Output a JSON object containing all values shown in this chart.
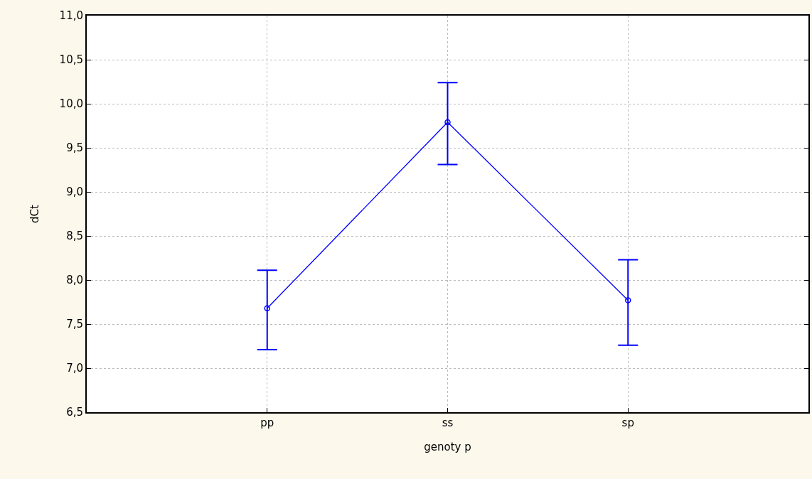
{
  "chart_data": {
    "type": "line",
    "xlabel": "genoty p",
    "ylabel": "dCt",
    "categories": [
      "pp",
      "ss",
      "sp"
    ],
    "series": [
      {
        "color": "#0000ff",
        "values": [
          7.68,
          9.79,
          7.77
        ],
        "errors": [
          [
            7.21,
            8.11
          ],
          [
            9.31,
            10.24
          ],
          [
            7.26,
            8.23
          ]
        ]
      }
    ],
    "ylim": [
      6.5,
      11.0
    ],
    "yticks": [
      {
        "value": 6.5,
        "label": "6,5"
      },
      {
        "value": 7.0,
        "label": "7,0"
      },
      {
        "value": 7.5,
        "label": "7,5"
      },
      {
        "value": 8.0,
        "label": "8,0"
      },
      {
        "value": 8.5,
        "label": "8,5"
      },
      {
        "value": 9.0,
        "label": "9,0"
      },
      {
        "value": 9.5,
        "label": "9,5"
      },
      {
        "value": 10.0,
        "label": "10,0"
      },
      {
        "value": 10.5,
        "label": "10,5"
      },
      {
        "value": 11.0,
        "label": "11,0"
      }
    ],
    "grid": true,
    "marker": "circle",
    "line_style": "solid"
  }
}
